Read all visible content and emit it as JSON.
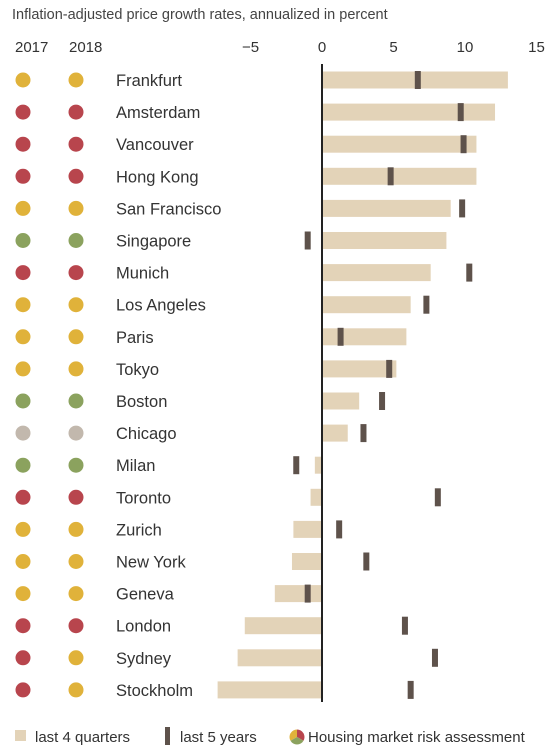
{
  "chart_data": {
    "type": "bar",
    "title": "Inflation-adjusted price growth rates, annualized in percent",
    "column_headers": {
      "year_a": "2017",
      "year_b": "2018"
    },
    "xlim": [
      -7.5,
      15
    ],
    "x_ticks": [
      -5,
      0,
      5,
      10,
      15
    ],
    "x_tick_labels": [
      "−5",
      "0",
      "5",
      "10",
      "15"
    ],
    "grid": false,
    "legend_position": "bottom",
    "series": [
      {
        "name": "last 4 quarters",
        "color": "#e3d3b8"
      },
      {
        "name": "last 5 years",
        "color": "#5e524b"
      }
    ],
    "risk_legend_label": "Housing market risk assessment",
    "risk_colors": {
      "red": "#b8454d",
      "yellow": "#e0b23a",
      "green": "#8ba25e",
      "grey": "#c2b8ad"
    },
    "rows": [
      {
        "city": "Frankfurt",
        "risk_2017": "yellow",
        "risk_2018": "yellow",
        "last_4_quarters": 13.0,
        "last_5_years": 6.7
      },
      {
        "city": "Amsterdam",
        "risk_2017": "red",
        "risk_2018": "red",
        "last_4_quarters": 12.1,
        "last_5_years": 9.7
      },
      {
        "city": "Vancouver",
        "risk_2017": "red",
        "risk_2018": "red",
        "last_4_quarters": 10.8,
        "last_5_years": 9.9
      },
      {
        "city": "Hong Kong",
        "risk_2017": "red",
        "risk_2018": "red",
        "last_4_quarters": 10.8,
        "last_5_years": 4.8
      },
      {
        "city": "San Francisco",
        "risk_2017": "yellow",
        "risk_2018": "yellow",
        "last_4_quarters": 9.0,
        "last_5_years": 9.8
      },
      {
        "city": "Singapore",
        "risk_2017": "green",
        "risk_2018": "green",
        "last_4_quarters": 8.7,
        "last_5_years": -1.0
      },
      {
        "city": "Munich",
        "risk_2017": "red",
        "risk_2018": "red",
        "last_4_quarters": 7.6,
        "last_5_years": 10.3
      },
      {
        "city": "Los Angeles",
        "risk_2017": "yellow",
        "risk_2018": "yellow",
        "last_4_quarters": 6.2,
        "last_5_years": 7.3
      },
      {
        "city": "Paris",
        "risk_2017": "yellow",
        "risk_2018": "yellow",
        "last_4_quarters": 5.9,
        "last_5_years": 1.3
      },
      {
        "city": "Tokyo",
        "risk_2017": "yellow",
        "risk_2018": "yellow",
        "last_4_quarters": 5.2,
        "last_5_years": 4.7
      },
      {
        "city": "Boston",
        "risk_2017": "green",
        "risk_2018": "green",
        "last_4_quarters": 2.6,
        "last_5_years": 4.2
      },
      {
        "city": "Chicago",
        "risk_2017": "grey",
        "risk_2018": "grey",
        "last_4_quarters": 1.8,
        "last_5_years": 2.9
      },
      {
        "city": "Milan",
        "risk_2017": "green",
        "risk_2018": "green",
        "last_4_quarters": -0.5,
        "last_5_years": -1.8
      },
      {
        "city": "Toronto",
        "risk_2017": "red",
        "risk_2018": "red",
        "last_4_quarters": -0.8,
        "last_5_years": 8.1
      },
      {
        "city": "Zurich",
        "risk_2017": "yellow",
        "risk_2018": "yellow",
        "last_4_quarters": -2.0,
        "last_5_years": 1.2
      },
      {
        "city": "New York",
        "risk_2017": "yellow",
        "risk_2018": "yellow",
        "last_4_quarters": -2.1,
        "last_5_years": 3.1
      },
      {
        "city": "Geneva",
        "risk_2017": "yellow",
        "risk_2018": "yellow",
        "last_4_quarters": -3.3,
        "last_5_years": -1.0
      },
      {
        "city": "London",
        "risk_2017": "red",
        "risk_2018": "red",
        "last_4_quarters": -5.4,
        "last_5_years": 5.8
      },
      {
        "city": "Sydney",
        "risk_2017": "red",
        "risk_2018": "yellow",
        "last_4_quarters": -5.9,
        "last_5_years": 7.9
      },
      {
        "city": "Stockholm",
        "risk_2017": "red",
        "risk_2018": "yellow",
        "last_4_quarters": -7.3,
        "last_5_years": 6.2
      }
    ]
  }
}
